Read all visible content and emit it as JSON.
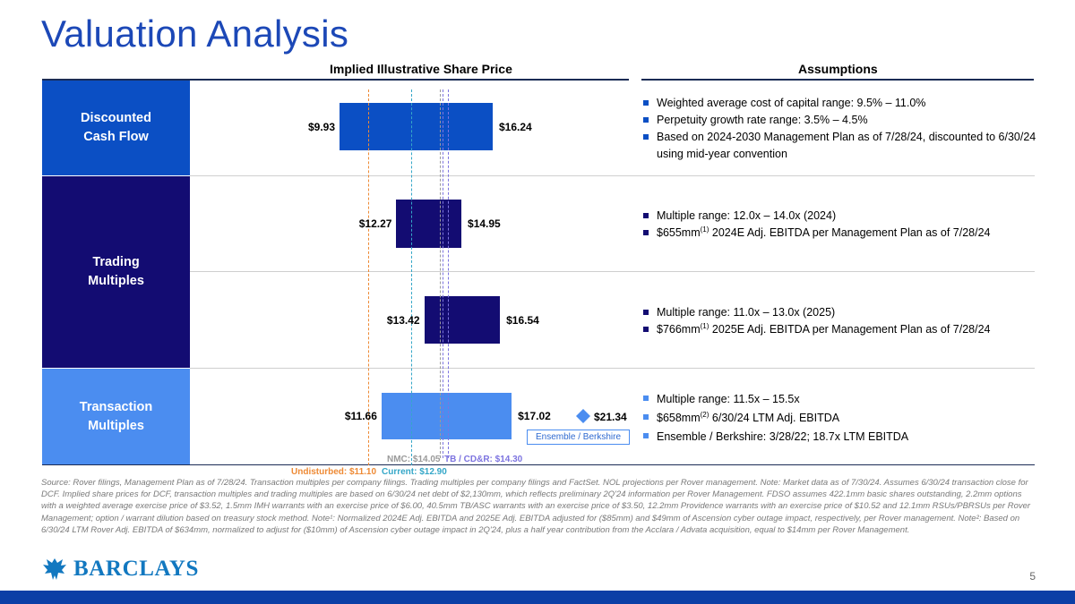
{
  "title": "Valuation Analysis",
  "headers": {
    "chart": "Implied Illustrative Share Price",
    "assumptions": "Assumptions"
  },
  "bands": [
    {
      "label": "Discounted\nCash Flow",
      "color": "#0b4fc4"
    },
    {
      "label": "Trading\nMultiples",
      "color": "#130c72"
    },
    {
      "label": "Transaction\nMultiples",
      "color": "#4b8df0"
    }
  ],
  "chart_data": {
    "type": "bar",
    "subtype": "floating-range",
    "title": "Implied Illustrative Share Price",
    "x_range": [
      9.0,
      22.0
    ],
    "series": [
      {
        "name": "Discounted Cash Flow",
        "low": 9.93,
        "high": 16.24,
        "low_label": "$9.93",
        "high_label": "$16.24",
        "color": "#0b4fc4"
      },
      {
        "name": "Trading Multiples (2024)",
        "low": 12.27,
        "high": 14.95,
        "low_label": "$12.27",
        "high_label": "$14.95",
        "color": "#130c72"
      },
      {
        "name": "Trading Multiples (2025)",
        "low": 13.42,
        "high": 16.54,
        "low_label": "$13.42",
        "high_label": "$16.54",
        "color": "#130c72"
      },
      {
        "name": "Transaction Multiples",
        "low": 11.66,
        "high": 17.02,
        "low_label": "$11.66",
        "high_label": "$17.02",
        "color": "#4b8df0"
      }
    ],
    "marker": {
      "name": "Ensemble / Berkshire",
      "value": 21.34,
      "label": "$21.34",
      "color": "#4b8df0"
    },
    "reference_lines": [
      {
        "name": "Undisturbed",
        "value": 11.1,
        "label": "Undisturbed: $11.10",
        "color": "#ee8a35"
      },
      {
        "name": "Current",
        "value": 12.9,
        "label": "Current: $12.90",
        "color": "#35a7c8"
      },
      {
        "name": "NMC",
        "value": 14.05,
        "label": "NMC: $14.05",
        "color": "#9a9a9a"
      },
      {
        "name": "TB / CD&R",
        "value": 14.3,
        "label": "TB / CD&R: $14.30",
        "color": "#7d74e0"
      }
    ]
  },
  "assumptions": [
    {
      "color": "#0b4fc4",
      "items": [
        {
          "text": "Weighted average cost of capital range: 9.5% – 11.0%"
        },
        {
          "text": "Perpetuity growth rate range: 3.5% – 4.5%"
        },
        {
          "text": "Based on 2024-2030 Management Plan as of 7/28/24, discounted to 6/30/24 using mid-year convention"
        }
      ]
    },
    {
      "color": "#130c72",
      "items": [
        {
          "text": "Multiple range: 12.0x – 14.0x (2024)"
        },
        {
          "pre": "$655mm",
          "sup": "(1)",
          "post": " 2024E Adj. EBITDA per Management Plan as of 7/28/24"
        }
      ]
    },
    {
      "color": "#130c72",
      "items": [
        {
          "text": "Multiple range: 11.0x – 13.0x (2025)"
        },
        {
          "pre": "$766mm",
          "sup": "(1)",
          "post": " 2025E Adj. EBITDA per Management Plan as of 7/28/24"
        }
      ]
    },
    {
      "color": "#4b8df0",
      "items": [
        {
          "text": "Multiple range: 11.5x – 15.5x"
        },
        {
          "pre": "$658mm",
          "sup": "(2)",
          "post": " 6/30/24 LTM Adj. EBITDA"
        },
        {
          "text": "Ensemble / Berkshire: 3/28/22; 18.7x LTM EBITDA"
        }
      ]
    }
  ],
  "source_note": "Source: Rover filings, Management Plan as of 7/28/24. Transaction multiples per company filings. Trading multiples per company filings and FactSet. NOL projections per Rover management. Note: Market data as of 7/30/24. Assumes 6/30/24 transaction close for DCF. Implied share prices for DCF, transaction multiples and trading multiples are based on 6/30/24 net debt of $2,130mm, which reflects preliminary 2Q'24 information per Rover Management. FDSO assumes 422.1mm basic shares outstanding, 2.2mm options with a weighted average exercise price of $3.52, 1.5mm IMH warrants with an exercise price of $6.00, 40.5mm TB/ASC warrants with an exercise price of $3.50, 12.2mm Providence warrants with an exercise price of $10.52 and 12.1mm RSUs/PBRSUs per Rover Management; option / warrant dilution based on treasury stock method. Note¹: Normalized 2024E Adj. EBITDA and 2025E Adj. EBITDA adjusted for ($85mm) and $49mm of Ascension cyber outage impact, respectively, per Rover management. Note²: Based on 6/30/24 LTM Rover Adj. EBITDA of $634mm, normalized to adjust for ($10mm) of Ascension cyber outage impact in 2Q'24, plus a half year contribution from the Acclara / Advata acquisition, equal to $14mm per Rover Management.",
  "logo": {
    "text": "BARCLAYS",
    "icon": "eagle-icon"
  },
  "page_number": "5"
}
